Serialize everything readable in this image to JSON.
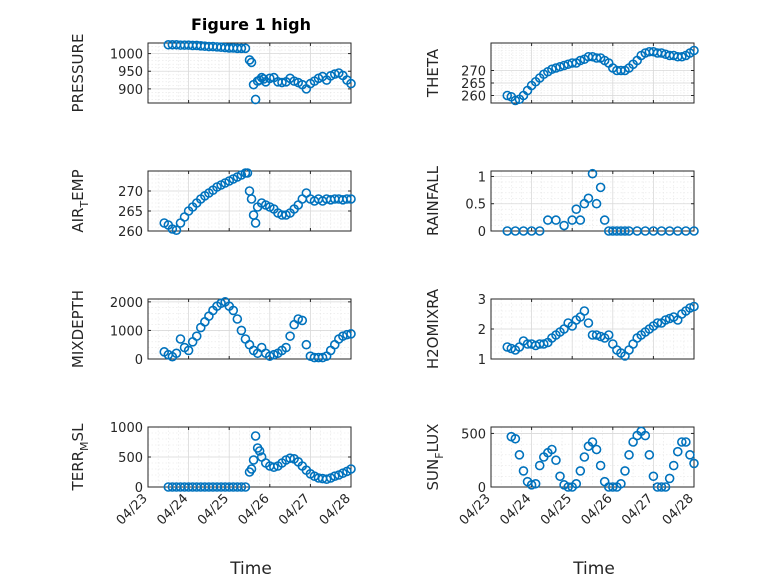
{
  "figure": {
    "title": "Figure 1 high",
    "xlabel": "Time",
    "marker_color": "#0072BD",
    "x_ticks": [
      "04/23",
      "04/24",
      "04/25",
      "04/26",
      "04/27",
      "04/28"
    ]
  },
  "chart_data": [
    {
      "type": "scatter",
      "ylabel": "PRESSURE",
      "title": "Figure 1 high",
      "xlim": [
        "04/23",
        "04/28"
      ],
      "ylim": [
        860,
        1030
      ],
      "yticks": [
        900,
        950,
        1000
      ],
      "grid": true,
      "series": [
        {
          "x": [
            0.5,
            0.6,
            0.7,
            0.8,
            0.9,
            1.0,
            1.1,
            1.2,
            1.3,
            1.4,
            1.5,
            1.6,
            1.7,
            1.8,
            1.9,
            2.0,
            2.1,
            2.2,
            2.3,
            2.4,
            2.5,
            2.55,
            2.6,
            2.65,
            2.7,
            2.75,
            2.8,
            2.85,
            2.9,
            3.0,
            3.1,
            3.2,
            3.3,
            3.4,
            3.5,
            3.6,
            3.7,
            3.8,
            3.9,
            4.0,
            4.1,
            4.2,
            4.3,
            4.4,
            4.5,
            4.6,
            4.7,
            4.8,
            4.9,
            5.0
          ],
          "y": [
            1025,
            1025,
            1025,
            1024,
            1024,
            1024,
            1023,
            1023,
            1022,
            1021,
            1020,
            1020,
            1019,
            1018,
            1017,
            1016,
            1016,
            1015,
            1015,
            1015,
            982,
            975,
            912,
            870,
            922,
            925,
            932,
            928,
            920,
            930,
            932,
            920,
            918,
            920,
            930,
            922,
            918,
            912,
            900,
            915,
            922,
            930,
            935,
            925,
            937,
            942,
            945,
            938,
            925,
            915
          ]
        }
      ]
    },
    {
      "type": "scatter",
      "ylabel": "THETA",
      "xlim": [
        "04/23",
        "04/28"
      ],
      "ylim": [
        257,
        281
      ],
      "yticks": [
        260,
        265,
        270
      ],
      "grid": true,
      "series": [
        {
          "x": [
            0.4,
            0.5,
            0.6,
            0.7,
            0.8,
            0.9,
            1.0,
            1.1,
            1.2,
            1.3,
            1.4,
            1.5,
            1.6,
            1.7,
            1.8,
            1.9,
            2.0,
            2.1,
            2.2,
            2.3,
            2.4,
            2.5,
            2.6,
            2.7,
            2.8,
            2.9,
            3.0,
            3.1,
            3.2,
            3.3,
            3.4,
            3.5,
            3.6,
            3.7,
            3.8,
            3.9,
            4.0,
            4.1,
            4.2,
            4.3,
            4.4,
            4.5,
            4.6,
            4.7,
            4.8,
            4.9,
            5.0
          ],
          "y": [
            260,
            259.5,
            258,
            258.5,
            260,
            262,
            264,
            265.5,
            267,
            268.5,
            269.5,
            270.5,
            271,
            271.5,
            272,
            272.5,
            273,
            273,
            274,
            274.5,
            275.5,
            275.5,
            275,
            275,
            274,
            273,
            271,
            270,
            270,
            270,
            271,
            272.5,
            274,
            276,
            277,
            277.5,
            277.5,
            277,
            277,
            276.5,
            276,
            276,
            275.5,
            275.5,
            276,
            277,
            278
          ]
        }
      ]
    },
    {
      "type": "scatter",
      "ylabel": "AIR_TEMP",
      "xlim": [
        "04/23",
        "04/28"
      ],
      "ylim": [
        260,
        275
      ],
      "yticks": [
        260,
        265,
        270
      ],
      "grid": true,
      "series": [
        {
          "x": [
            0.4,
            0.5,
            0.6,
            0.7,
            0.8,
            0.9,
            1.0,
            1.1,
            1.2,
            1.3,
            1.4,
            1.5,
            1.6,
            1.7,
            1.8,
            1.9,
            2.0,
            2.1,
            2.2,
            2.3,
            2.4,
            2.45,
            2.5,
            2.55,
            2.6,
            2.65,
            2.7,
            2.8,
            2.9,
            3.0,
            3.1,
            3.2,
            3.3,
            3.4,
            3.5,
            3.6,
            3.7,
            3.8,
            3.9,
            4.0,
            4.1,
            4.2,
            4.3,
            4.4,
            4.5,
            4.6,
            4.7,
            4.8,
            4.9,
            5.0
          ],
          "y": [
            262,
            261.5,
            260.5,
            260.2,
            262,
            263.5,
            265,
            266,
            267,
            268,
            268.8,
            269.5,
            270.2,
            271,
            271.5,
            272,
            272.5,
            273,
            273.5,
            274,
            274.5,
            274.5,
            270,
            268,
            264,
            262,
            266,
            267,
            266.5,
            266,
            265.5,
            264.5,
            264,
            264,
            264.5,
            265.5,
            266.5,
            268,
            269.5,
            268,
            267.5,
            268,
            267.5,
            268,
            267.8,
            268,
            268,
            267.8,
            268,
            268
          ]
        }
      ]
    },
    {
      "type": "scatter",
      "ylabel": "RAINFALL",
      "xlim": [
        "04/23",
        "04/28"
      ],
      "ylim": [
        0,
        1.1
      ],
      "yticks": [
        0,
        0.5,
        1
      ],
      "grid": true,
      "series": [
        {
          "x": [
            0.4,
            0.6,
            0.8,
            1.0,
            1.2,
            1.4,
            1.6,
            1.8,
            2.0,
            2.1,
            2.2,
            2.3,
            2.4,
            2.5,
            2.6,
            2.7,
            2.8,
            2.9,
            3.0,
            3.1,
            3.2,
            3.3,
            3.4,
            3.6,
            3.8,
            4.0,
            4.2,
            4.4,
            4.6,
            4.8,
            5.0
          ],
          "y": [
            0,
            0,
            0,
            0,
            0,
            0.2,
            0.2,
            0.1,
            0.2,
            0.4,
            0.2,
            0.5,
            0.6,
            1.05,
            0.5,
            0.8,
            0.2,
            0.0,
            0,
            0,
            0,
            0,
            0,
            0,
            0,
            0,
            0,
            0,
            0,
            0,
            0
          ]
        }
      ]
    },
    {
      "type": "scatter",
      "ylabel": "MIXDEPTH",
      "xlim": [
        "04/23",
        "04/28"
      ],
      "ylim": [
        0,
        2100
      ],
      "yticks": [
        0,
        1000,
        2000
      ],
      "grid": true,
      "series": [
        {
          "x": [
            0.4,
            0.5,
            0.6,
            0.7,
            0.8,
            0.9,
            1.0,
            1.1,
            1.2,
            1.3,
            1.4,
            1.5,
            1.6,
            1.7,
            1.8,
            1.9,
            2.0,
            2.1,
            2.2,
            2.3,
            2.4,
            2.5,
            2.6,
            2.7,
            2.8,
            2.9,
            3.0,
            3.1,
            3.2,
            3.3,
            3.4,
            3.5,
            3.6,
            3.7,
            3.8,
            3.9,
            4.0,
            4.1,
            4.2,
            4.3,
            4.4,
            4.5,
            4.6,
            4.7,
            4.8,
            4.9,
            5.0
          ],
          "y": [
            250,
            150,
            80,
            200,
            700,
            400,
            300,
            600,
            800,
            1100,
            1300,
            1500,
            1700,
            1850,
            1950,
            2000,
            1850,
            1700,
            1400,
            1000,
            700,
            500,
            300,
            200,
            400,
            200,
            100,
            150,
            200,
            300,
            400,
            800,
            1200,
            1400,
            1350,
            500,
            100,
            50,
            50,
            50,
            100,
            300,
            500,
            700,
            800,
            850,
            880
          ]
        }
      ]
    },
    {
      "type": "scatter",
      "ylabel": "H2OMIXRA",
      "xlim": [
        "04/23",
        "04/28"
      ],
      "ylim": [
        1,
        3
      ],
      "yticks": [
        1,
        2,
        3
      ],
      "grid": true,
      "series": [
        {
          "x": [
            0.4,
            0.5,
            0.6,
            0.7,
            0.8,
            0.9,
            1.0,
            1.1,
            1.2,
            1.3,
            1.4,
            1.5,
            1.6,
            1.7,
            1.8,
            1.9,
            2.0,
            2.1,
            2.2,
            2.3,
            2.4,
            2.5,
            2.6,
            2.7,
            2.8,
            2.9,
            3.0,
            3.1,
            3.2,
            3.3,
            3.4,
            3.5,
            3.6,
            3.7,
            3.8,
            3.9,
            4.0,
            4.1,
            4.2,
            4.3,
            4.4,
            4.5,
            4.6,
            4.7,
            4.8,
            4.9,
            5.0
          ],
          "y": [
            1.4,
            1.35,
            1.3,
            1.4,
            1.6,
            1.5,
            1.5,
            1.45,
            1.5,
            1.5,
            1.55,
            1.7,
            1.8,
            1.9,
            2.0,
            2.2,
            2.1,
            2.3,
            2.4,
            2.6,
            2.2,
            1.8,
            1.8,
            1.75,
            1.7,
            1.8,
            1.5,
            1.3,
            1.2,
            1.1,
            1.3,
            1.5,
            1.7,
            1.8,
            1.9,
            2.0,
            2.1,
            2.2,
            2.2,
            2.3,
            2.35,
            2.4,
            2.3,
            2.5,
            2.6,
            2.7,
            2.75
          ]
        }
      ]
    },
    {
      "type": "scatter",
      "ylabel": "TERR_MSL",
      "xlim": [
        "04/23",
        "04/28"
      ],
      "ylim": [
        0,
        1000
      ],
      "yticks": [
        0,
        500,
        1000
      ],
      "grid": true,
      "series": [
        {
          "x": [
            0.5,
            0.6,
            0.7,
            0.8,
            0.9,
            1.0,
            1.1,
            1.2,
            1.3,
            1.4,
            1.5,
            1.6,
            1.7,
            1.8,
            1.9,
            2.0,
            2.1,
            2.2,
            2.3,
            2.4,
            2.5,
            2.55,
            2.6,
            2.65,
            2.7,
            2.75,
            2.8,
            2.9,
            3.0,
            3.1,
            3.2,
            3.3,
            3.4,
            3.5,
            3.6,
            3.7,
            3.8,
            3.9,
            4.0,
            4.1,
            4.2,
            4.3,
            4.4,
            4.5,
            4.6,
            4.7,
            4.8,
            4.9,
            5.0
          ],
          "y": [
            0,
            0,
            0,
            0,
            0,
            0,
            0,
            0,
            0,
            0,
            0,
            0,
            0,
            0,
            0,
            0,
            0,
            0,
            0,
            0,
            250,
            300,
            450,
            850,
            650,
            600,
            500,
            400,
            350,
            330,
            350,
            400,
            450,
            480,
            470,
            420,
            350,
            280,
            220,
            180,
            150,
            140,
            130,
            150,
            180,
            200,
            230,
            260,
            300
          ]
        }
      ]
    },
    {
      "type": "scatter",
      "ylabel": "SUN_FLUX",
      "xlim": [
        "04/23",
        "04/28"
      ],
      "ylim": [
        0,
        560
      ],
      "yticks": [
        0,
        500
      ],
      "grid": true,
      "series": [
        {
          "x": [
            0.5,
            0.6,
            0.7,
            0.8,
            0.9,
            1.0,
            1.1,
            1.2,
            1.3,
            1.4,
            1.5,
            1.6,
            1.7,
            1.8,
            1.9,
            2.0,
            2.1,
            2.2,
            2.3,
            2.4,
            2.5,
            2.6,
            2.7,
            2.8,
            2.9,
            3.0,
            3.1,
            3.2,
            3.3,
            3.4,
            3.5,
            3.6,
            3.7,
            3.8,
            3.9,
            4.0,
            4.1,
            4.2,
            4.3,
            4.4,
            4.5,
            4.6,
            4.7,
            4.8,
            4.9,
            5.0
          ],
          "y": [
            470,
            450,
            300,
            150,
            50,
            20,
            30,
            200,
            280,
            320,
            350,
            250,
            100,
            20,
            0,
            0,
            30,
            150,
            280,
            380,
            420,
            350,
            200,
            50,
            0,
            0,
            0,
            30,
            150,
            300,
            420,
            480,
            520,
            480,
            300,
            100,
            0,
            0,
            0,
            80,
            200,
            330,
            420,
            420,
            300,
            220
          ]
        }
      ]
    }
  ]
}
